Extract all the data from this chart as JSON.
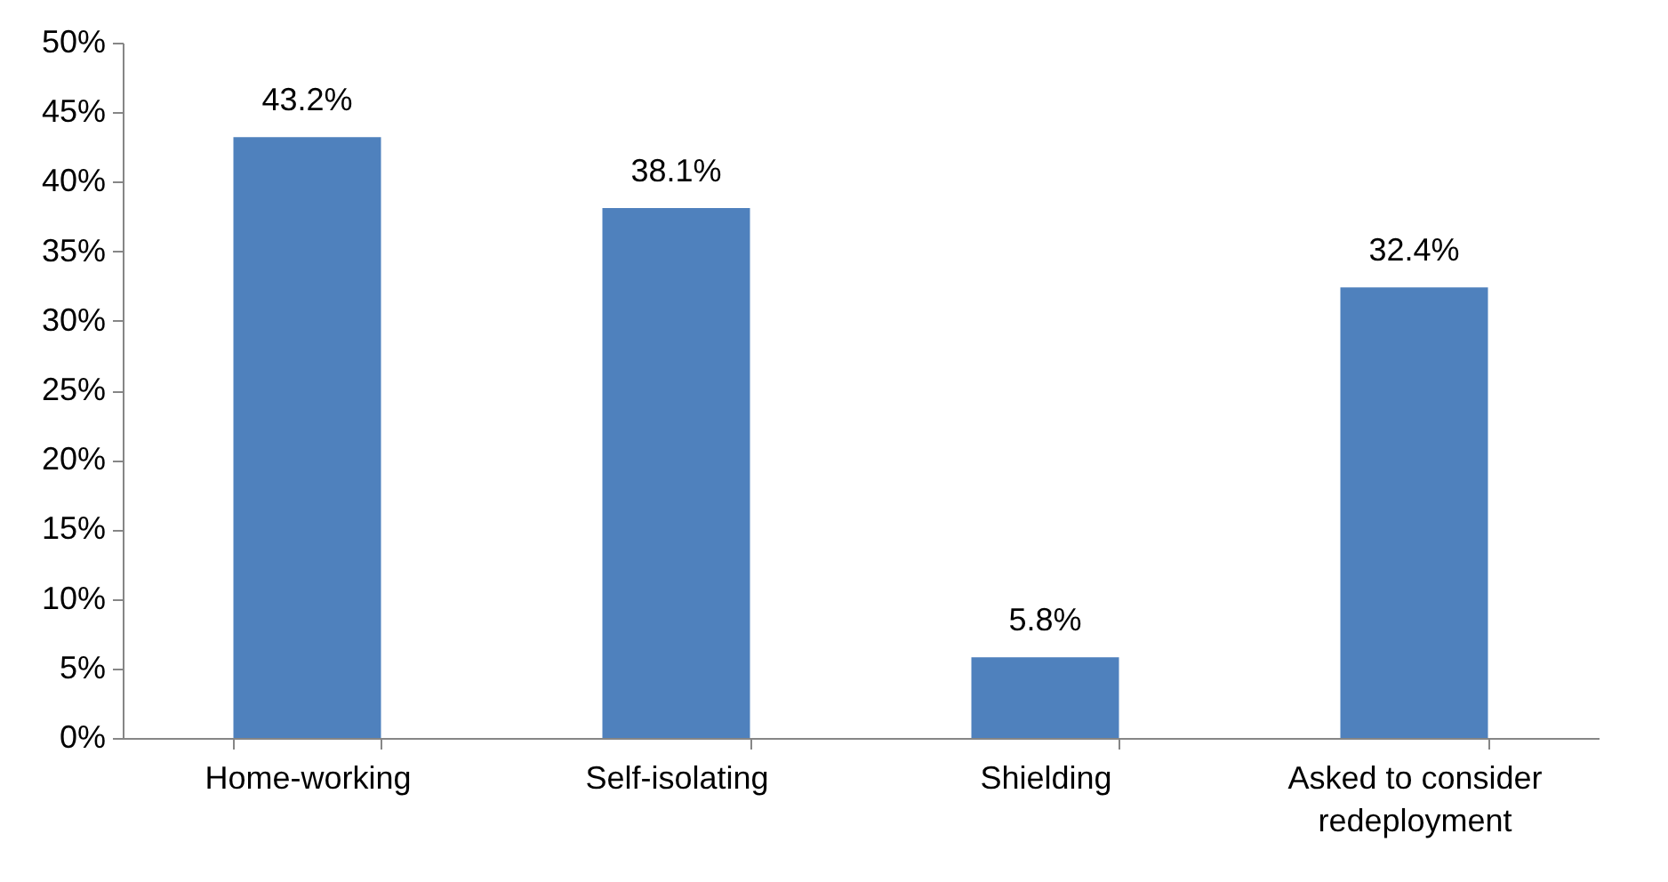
{
  "chart_data": {
    "type": "bar",
    "categories": [
      "Home-working",
      "Self-isolating",
      "Shielding",
      "Asked to consider redeployment"
    ],
    "values": [
      43.2,
      38.1,
      5.8,
      32.4
    ],
    "color": "#4f81bd",
    "value_labels": [
      "43.2%",
      "38.1%",
      "5.8%",
      "32.4%"
    ],
    "ylim": [
      0,
      50
    ],
    "yticks": [
      {
        "value": 0,
        "label": "0%"
      },
      {
        "value": 5,
        "label": "5%"
      },
      {
        "value": 10,
        "label": "10%"
      },
      {
        "value": 15,
        "label": "15%"
      },
      {
        "value": 20,
        "label": "20%"
      },
      {
        "value": 25,
        "label": "25%"
      },
      {
        "value": 30,
        "label": "30%"
      },
      {
        "value": 35,
        "label": "35%"
      },
      {
        "value": 40,
        "label": "40%"
      },
      {
        "value": 45,
        "label": "45%"
      },
      {
        "value": 50,
        "label": "50%"
      }
    ],
    "grid": false
  }
}
